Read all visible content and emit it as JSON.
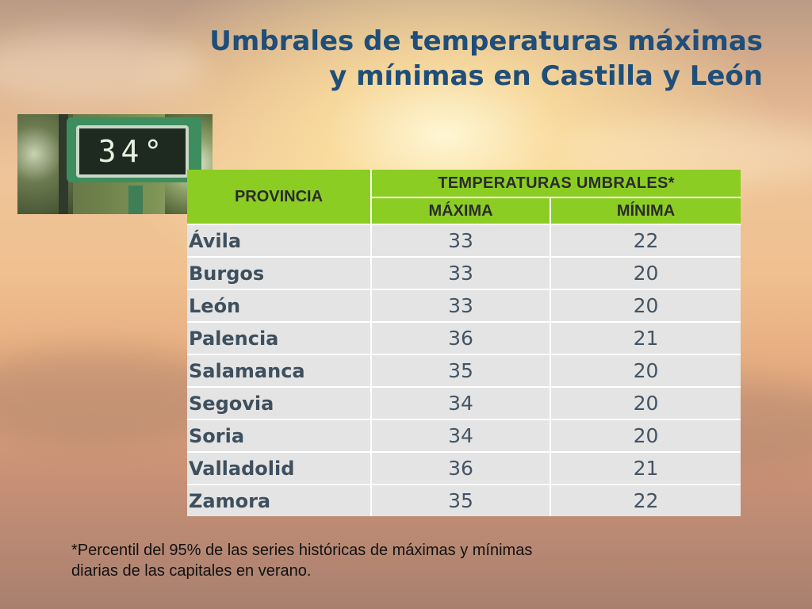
{
  "title": {
    "line1": "Umbrales de temperaturas máximas",
    "line2": "y mínimas en Castilla y León"
  },
  "photo": {
    "display_text": "34°",
    "icon": "thermometer-display-photo"
  },
  "table": {
    "header_provincia": "PROVINCIA",
    "header_group": "TEMPERATURAS UMBRALES*",
    "header_max": "MÁXIMA",
    "header_min": "MÍNIMA",
    "rows": [
      {
        "provincia": "Ávila",
        "maxima": "33",
        "minima": "22"
      },
      {
        "provincia": "Burgos",
        "maxima": "33",
        "minima": "20"
      },
      {
        "provincia": "León",
        "maxima": "33",
        "minima": "20"
      },
      {
        "provincia": "Palencia",
        "maxima": "36",
        "minima": "21"
      },
      {
        "provincia": "Salamanca",
        "maxima": "35",
        "minima": "20"
      },
      {
        "provincia": "Segovia",
        "maxima": "34",
        "minima": "20"
      },
      {
        "provincia": "Soria",
        "maxima": "34",
        "minima": "20"
      },
      {
        "provincia": "Valladolid",
        "maxima": "36",
        "minima": "21"
      },
      {
        "provincia": "Zamora",
        "maxima": "35",
        "minima": "22"
      }
    ]
  },
  "footnote": {
    "line1": "*Percentil del 95% de las series históricas de máximas y mínimas",
    "line2": "diarias de las capitales en verano."
  },
  "colors": {
    "title": "#1f4e79",
    "header_green": "#8ccd24",
    "cell_gray": "#e4e4e4"
  }
}
